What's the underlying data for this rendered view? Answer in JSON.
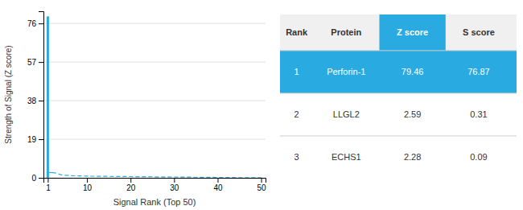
{
  "chart_data": {
    "type": "bar",
    "x_label": "Signal Rank (Top 50)",
    "y_label": "Strength of Signal (Z score)",
    "x": [
      1,
      2,
      3,
      4,
      5,
      6,
      7,
      8,
      9,
      10,
      11,
      12,
      13,
      14,
      15,
      16,
      17,
      18,
      19,
      20,
      21,
      22,
      23,
      24,
      25,
      26,
      27,
      28,
      29,
      30,
      31,
      32,
      33,
      34,
      35,
      36,
      37,
      38,
      39,
      40,
      41,
      42,
      43,
      44,
      45,
      46,
      47,
      48,
      49,
      50
    ],
    "series": [
      {
        "type": "bar",
        "color": "#29ABE2",
        "values": [
          79.46,
          null,
          null,
          null,
          null,
          null,
          null,
          null,
          null,
          null,
          null,
          null,
          null,
          null,
          null,
          null,
          null,
          null,
          null,
          null,
          null,
          null,
          null,
          null,
          null,
          null,
          null,
          null,
          null,
          null,
          null,
          null,
          null,
          null,
          null,
          null,
          null,
          null,
          null,
          null,
          null,
          null,
          null,
          null,
          null,
          null,
          null,
          null,
          null,
          null
        ]
      },
      {
        "type": "line",
        "color": "#29ABE2",
        "line_style": "dashed",
        "values": [
          null,
          2.59,
          2.28,
          1.5,
          1.2,
          1.1,
          1.0,
          0.95,
          0.9,
          0.85,
          0.8,
          0.78,
          0.75,
          0.72,
          0.7,
          0.68,
          0.65,
          0.63,
          0.61,
          0.59,
          0.57,
          0.55,
          0.53,
          0.51,
          0.49,
          0.47,
          0.45,
          0.43,
          0.41,
          0.39,
          0.37,
          0.35,
          0.33,
          0.31,
          0.29,
          0.27,
          0.25,
          0.23,
          0.21,
          0.19,
          0.17,
          0.15,
          0.13,
          0.11,
          0.09,
          0.07,
          0.06,
          0.05,
          0.04,
          0.03
        ]
      }
    ],
    "xlim": [
      0,
      51
    ],
    "ylim": [
      0,
      82
    ],
    "xticks": [
      1,
      10,
      20,
      30,
      40,
      50
    ],
    "yticks": [
      0,
      19,
      38,
      57,
      76
    ],
    "grid": true,
    "table": [
      [
        "Rank",
        "Protein",
        "Z score",
        "S score"
      ],
      [
        "1",
        "Perforin-1",
        "79.46",
        "76.87"
      ],
      [
        "2",
        "LLGL2",
        "2.59",
        "0.31"
      ],
      [
        "3",
        "ECHS1",
        "2.28",
        "0.09"
      ]
    ]
  }
}
